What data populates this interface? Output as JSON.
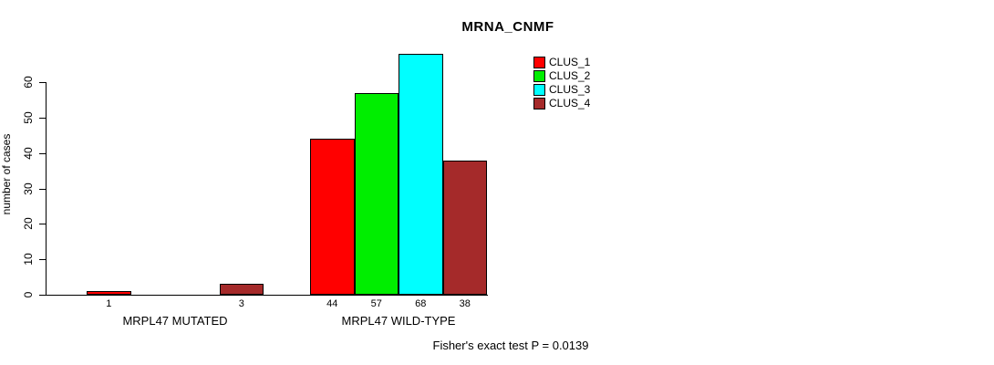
{
  "title": "MRNA_CNMF",
  "y_axis": {
    "label": "number of cases",
    "ticks": [
      0,
      10,
      20,
      30,
      40,
      50,
      60
    ]
  },
  "footer": "Fisher's exact test P = 0.0139",
  "legend": {
    "items": [
      {
        "label": "CLUS_1",
        "color": "#ff0000"
      },
      {
        "label": "CLUS_2",
        "color": "#00ee00"
      },
      {
        "label": "CLUS_3",
        "color": "#00ffff"
      },
      {
        "label": "CLUS_4",
        "color": "#a52a2a"
      }
    ]
  },
  "chart_data": {
    "type": "bar",
    "title": "MRNA_CNMF",
    "ylabel": "number of cases",
    "xlabel": "",
    "ylim": [
      0,
      68
    ],
    "yticks": [
      0,
      10,
      20,
      30,
      40,
      50,
      60
    ],
    "grid": false,
    "legend_position": "top-right",
    "series": [
      "CLUS_1",
      "CLUS_2",
      "CLUS_3",
      "CLUS_4"
    ],
    "series_colors": [
      "#ff0000",
      "#00ee00",
      "#00ffff",
      "#a52a2a"
    ],
    "groups": [
      {
        "label": "MRPL47 MUTATED",
        "values": [
          1,
          0,
          0,
          3
        ]
      },
      {
        "label": "MRPL47 WILD-TYPE",
        "values": [
          44,
          57,
          68,
          38
        ]
      }
    ],
    "annotation": "Fisher's exact test P = 0.0139"
  }
}
